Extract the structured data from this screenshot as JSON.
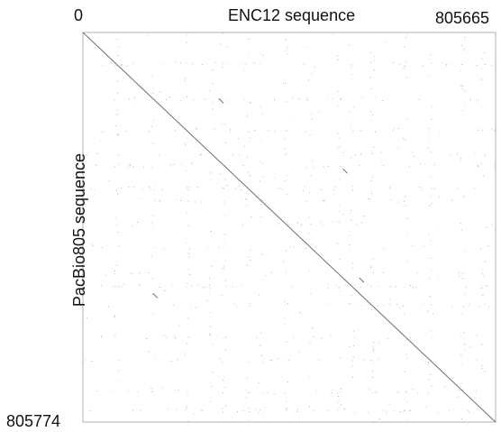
{
  "chart_data": {
    "type": "scatter",
    "title": "",
    "xlabel": "ENC12 sequence",
    "ylabel": "PacBio805 sequence",
    "xlim": [
      0,
      805665
    ],
    "ylim": [
      0,
      805774
    ],
    "y_inverted": true,
    "grid": false,
    "legend": "none",
    "x_tick_labels": [
      "0",
      "805665"
    ],
    "y_tick_labels": [
      "805774"
    ],
    "main_alignment": {
      "x": [
        0,
        805665
      ],
      "y": [
        0,
        805774
      ]
    },
    "colors": {
      "frame": "#b0b0b0",
      "diagonal": "#6e6e6e",
      "dots": "#9a9a9a"
    }
  }
}
